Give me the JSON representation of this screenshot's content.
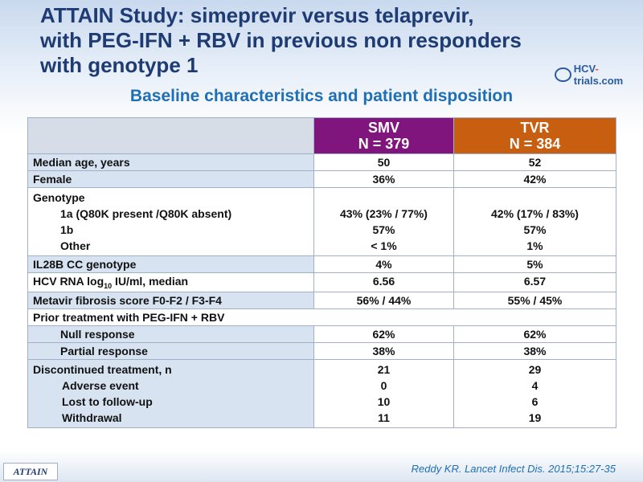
{
  "title": {
    "line1": "ATTAIN Study: simeprevir versus telaprevir,",
    "line2": "with PEG-IFN + RBV in previous non responders",
    "line3": "with genotype 1"
  },
  "logo": {
    "prefix": "HCV",
    "dash": "-",
    "suffix": "trials.com"
  },
  "subtitle": "Baseline characteristics and patient disposition",
  "table": {
    "headers": {
      "smv_name": "SMV",
      "smv_n": "N = 379",
      "tvr_name": "TVR",
      "tvr_n": "N = 384"
    },
    "rows": {
      "age": {
        "label": "Median age, years",
        "smv": "50",
        "tvr": "52"
      },
      "female": {
        "label": "Female",
        "smv": "36%",
        "tvr": "42%"
      },
      "genotype": {
        "label": "Genotype",
        "sub": [
          "1a  (Q80K present /Q80K absent)",
          "1b",
          "Other"
        ],
        "smv": [
          "43% (23% / 77%)",
          "57%",
          "< 1%"
        ],
        "tvr": [
          "42% (17% / 83%)",
          "57%",
          "1%"
        ]
      },
      "il28b": {
        "label": "IL28B CC genotype",
        "smv": "4%",
        "tvr": "5%"
      },
      "hcv_rna": {
        "label_pre": "HCV RNA log",
        "label_sub": "10",
        "label_post": " IU/ml, median",
        "smv": "6.56",
        "tvr": "6.57"
      },
      "metavir": {
        "label": "Metavir fibrosis score F0-F2 / F3-F4",
        "smv": "56% / 44%",
        "tvr": "55% / 45%"
      },
      "prior": {
        "label": "Prior treatment with PEG-IFN + RBV"
      },
      "null": {
        "label": "Null response",
        "smv": "62%",
        "tvr": "62%"
      },
      "partial": {
        "label": "Partial response",
        "smv": "38%",
        "tvr": "38%"
      },
      "discontinued": {
        "label": "Discontinued treatment, n",
        "sub": [
          "Adverse event",
          "Lost to follow-up",
          "Withdrawal"
        ],
        "smv": [
          "21",
          "0",
          "10",
          "11"
        ],
        "tvr": [
          "29",
          "4",
          "6",
          "19"
        ]
      }
    }
  },
  "footer": {
    "tag": "ATTAIN",
    "citation": "Reddy KR. Lancet Infect Dis. 2015;15:27-35"
  },
  "colors": {
    "title": "#1f3b73",
    "subtitle": "#1f6fb5",
    "smv_header": "#7f157d",
    "tvr_header": "#c85e10",
    "row_shade": "#d7e3f1"
  }
}
